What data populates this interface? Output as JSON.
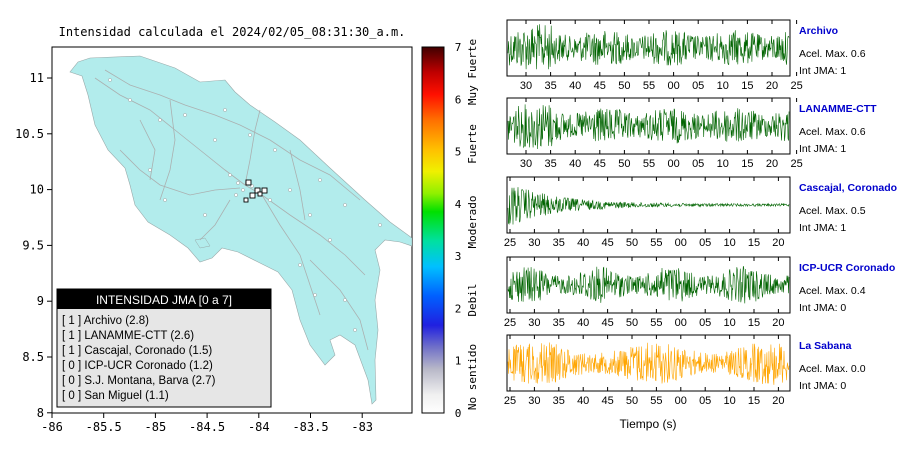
{
  "title": "Intensidad calculada el 2024/02/05_08:31:30_a.m.",
  "map": {
    "x_ticks": [
      "-86",
      "-85.5",
      "-85",
      "-84.5",
      "-84",
      "-83.5",
      "-83"
    ],
    "y_ticks": [
      "11",
      "10.5",
      "10",
      "9.5",
      "9",
      "8.5",
      "8"
    ],
    "land_color": "#b2ecec"
  },
  "legend": {
    "header": "INTENSIDAD JMA [0 a 7]",
    "items": [
      "[ 1 ]  Archivo (2.8)",
      "[ 1 ]  LANAMME-CTT (2.6)",
      "[ 1 ]  Cascajal, Coronado (1.5)",
      "[ 0 ]  ICP-UCR Coronado (1.2)",
      "[ 0 ]  S.J. Montana, Barva (2.7)",
      "[ 0 ]  San Miguel (1.1)"
    ]
  },
  "colorbar": {
    "ticks": [
      "0",
      "1",
      "2",
      "3",
      "4",
      "5",
      "6",
      "7"
    ],
    "labels": [
      "No sentido",
      "Debil",
      "Moderado",
      "Fuerte",
      "Muy Fuerte"
    ]
  },
  "xlabel": "Tiempo (s)",
  "chart_data": [
    {
      "type": "line",
      "name": "Archivo",
      "accel_label": "Acel. Max. 0.6",
      "int_label": "Int JMA: 1",
      "color": "#006400",
      "ticks": [
        "30",
        "35",
        "40",
        "45",
        "50",
        "55",
        "00",
        "05",
        "10",
        "15",
        "20",
        "25"
      ]
    },
    {
      "type": "line",
      "name": "LANAMME-CTT",
      "accel_label": "Acel. Max. 0.6",
      "int_label": "Int JMA: 1",
      "color": "#006400",
      "ticks": [
        "30",
        "35",
        "40",
        "45",
        "50",
        "55",
        "00",
        "05",
        "10",
        "15",
        "20",
        "25"
      ]
    },
    {
      "type": "line",
      "name": "Cascajal, Coronado",
      "accel_label": "Acel. Max. 0.5",
      "int_label": "Int JMA: 1",
      "color": "#006400",
      "ticks": [
        "25",
        "30",
        "35",
        "40",
        "45",
        "50",
        "55",
        "00",
        "05",
        "10",
        "15",
        "20"
      ]
    },
    {
      "type": "line",
      "name": "ICP-UCR Coronado",
      "accel_label": "Acel. Max. 0.4",
      "int_label": "Int JMA: 0",
      "color": "#006400",
      "ticks": [
        "25",
        "30",
        "35",
        "40",
        "45",
        "50",
        "55",
        "00",
        "05",
        "10",
        "15",
        "20"
      ]
    },
    {
      "type": "line",
      "name": "La Sabana",
      "accel_label": "Acel. Max. 0.0",
      "int_label": "Int JMA: 0",
      "color": "#ffa500",
      "ticks": [
        "25",
        "30",
        "35",
        "40",
        "45",
        "50",
        "55",
        "00",
        "05",
        "10",
        "15",
        "20"
      ]
    }
  ]
}
